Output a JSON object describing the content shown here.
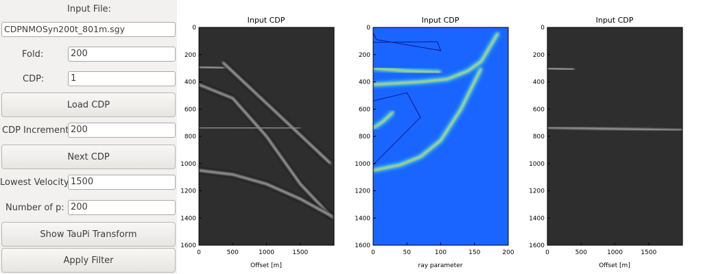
{
  "controls": {
    "input_file_label": "Input File:",
    "input_file_value": "CDPNMOSyn200t_801m.sgy",
    "fold_label": "Fold:",
    "fold_value": "200",
    "cdp_label": "CDP:",
    "cdp_value": "1",
    "load_cdp_button": "Load CDP",
    "cdp_increment_label": "CDP Increment:",
    "cdp_increment_value": "200",
    "next_cdp_button": "Next CDP",
    "lowest_velocity_label": "Lowest Velocity:",
    "lowest_velocity_value": "1500",
    "number_p_label": "Number of p:",
    "number_p_value": "200",
    "show_taupi_button": "Show TauPi Transform",
    "apply_filter_button": "Apply Filter"
  },
  "plots": [
    {
      "title": "Input CDP",
      "xlabel": "Offset [m]"
    },
    {
      "title": "Input CDP",
      "xlabel": "ray parameter"
    },
    {
      "title": "Input CDP",
      "xlabel": "Offset [m]"
    }
  ],
  "chart_data": [
    {
      "type": "heatmap",
      "title": "Input CDP",
      "xlabel": "Offset [m]",
      "ylabel": "",
      "xlim": [
        0,
        2000
      ],
      "ylim": [
        1600,
        0
      ],
      "xticks": [
        0,
        500,
        1000,
        1500
      ],
      "yticks": [
        0,
        200,
        400,
        600,
        800,
        1000,
        1200,
        1400,
        1600
      ],
      "colormap": "gray",
      "events": [
        {
          "kind": "line",
          "points": [
            [
              0,
              290
            ],
            [
              400,
              300
            ]
          ]
        },
        {
          "kind": "line",
          "points": [
            [
              350,
              255
            ],
            [
              1950,
              1000
            ]
          ]
        },
        {
          "kind": "curve",
          "points": [
            [
              0,
              420
            ],
            [
              500,
              520
            ],
            [
              1000,
              800
            ],
            [
              1500,
              1150
            ],
            [
              1980,
              1400
            ]
          ]
        },
        {
          "kind": "line",
          "points": [
            [
              0,
              735
            ],
            [
              1500,
              740
            ]
          ]
        },
        {
          "kind": "curve",
          "points": [
            [
              0,
              1050
            ],
            [
              500,
              1080
            ],
            [
              1000,
              1150
            ],
            [
              1500,
              1260
            ],
            [
              1980,
              1390
            ]
          ]
        }
      ]
    },
    {
      "type": "heatmap",
      "title": "Input CDP",
      "xlabel": "ray parameter",
      "ylabel": "",
      "xlim": [
        0,
        200
      ],
      "ylim": [
        1600,
        0
      ],
      "xticks": [
        0,
        50,
        100,
        150,
        200
      ],
      "yticks": [
        0,
        200,
        400,
        600,
        800,
        1000,
        1200,
        1400,
        1600
      ],
      "colormap": "jet",
      "events": [
        {
          "kind": "curve",
          "points": [
            [
              0,
              300
            ],
            [
              50,
              320
            ],
            [
              100,
              330
            ]
          ]
        },
        {
          "kind": "curve",
          "points": [
            [
              0,
              420
            ],
            [
              70,
              400
            ],
            [
              110,
              380
            ],
            [
              140,
              320
            ],
            [
              160,
              250
            ],
            [
              185,
              40
            ]
          ]
        },
        {
          "kind": "curve",
          "points": [
            [
              0,
              1050
            ],
            [
              40,
              1010
            ],
            [
              70,
              950
            ],
            [
              100,
              830
            ],
            [
              130,
              600
            ],
            [
              160,
              300
            ]
          ]
        },
        {
          "kind": "curve",
          "points": [
            [
              0,
              740
            ],
            [
              15,
              690
            ],
            [
              30,
              620
            ]
          ]
        }
      ],
      "polygons": [
        [
          [
            0,
            40
          ],
          [
            5,
            90
          ],
          [
            100,
            170
          ],
          [
            95,
            105
          ],
          [
            0,
            110
          ]
        ],
        [
          [
            0,
            540
          ],
          [
            50,
            480
          ],
          [
            70,
            660
          ],
          [
            10,
            960
          ],
          [
            0,
            1010
          ]
        ]
      ]
    },
    {
      "type": "heatmap",
      "title": "Input CDP",
      "xlabel": "Offset [m]",
      "ylabel": "",
      "xlim": [
        0,
        2000
      ],
      "ylim": [
        1600,
        0
      ],
      "xticks": [
        0,
        500,
        1000,
        1500
      ],
      "yticks": [
        0,
        200,
        400,
        600,
        800,
        1000,
        1200,
        1400,
        1600
      ],
      "colormap": "gray",
      "events": [
        {
          "kind": "line",
          "points": [
            [
              0,
              300
            ],
            [
              400,
              310
            ]
          ]
        },
        {
          "kind": "line",
          "points": [
            [
              0,
              735
            ],
            [
              2000,
              755
            ]
          ]
        }
      ]
    }
  ]
}
